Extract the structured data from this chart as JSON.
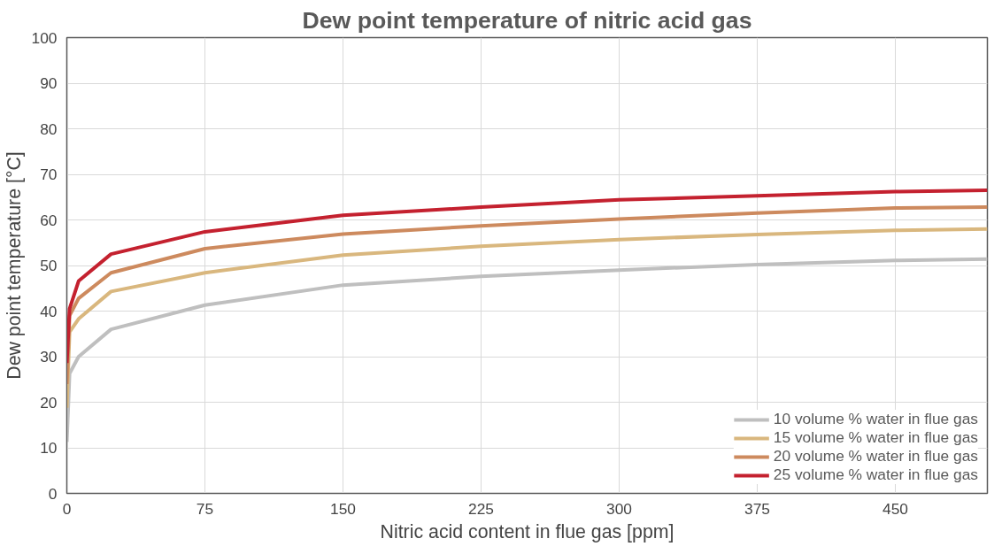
{
  "chart_data": {
    "type": "line",
    "title": "Dew point temperature of nitric acid gas",
    "xlabel": "Nitric acid content in flue gas [ppm]",
    "ylabel": "Dew point temperature [°C]",
    "x": [
      0,
      1.5,
      6.4,
      24,
      75,
      150,
      225,
      300,
      375,
      450,
      500
    ],
    "series": [
      {
        "name": "10 volume % water in flue gas",
        "color": "#bfbfbf",
        "values": [
          11.3,
          26.3,
          30,
          36,
          41.3,
          45.7,
          47.6,
          49.0,
          50.2,
          51.1,
          51.4
        ]
      },
      {
        "name": "15 volume % water in flue gas",
        "color": "#d9b77e",
        "values": [
          18.8,
          35.4,
          38.3,
          44.3,
          48.4,
          52.3,
          54.2,
          55.7,
          56.8,
          57.7,
          58.0
        ]
      },
      {
        "name": "20 volume % water in flue gas",
        "color": "#cd8a5e",
        "values": [
          24,
          39,
          42.8,
          48.4,
          53.7,
          56.9,
          58.7,
          60.2,
          61.5,
          62.6,
          62.8
        ]
      },
      {
        "name": "25 volume % water in flue gas",
        "color": "#c4212f",
        "values": [
          28.6,
          40.5,
          46.6,
          52.5,
          57.4,
          61.0,
          62.8,
          64.4,
          65.3,
          66.2,
          66.5
        ]
      }
    ],
    "xlim": [
      0,
      500
    ],
    "ylim": [
      0,
      100
    ],
    "xticks": [
      0,
      75,
      150,
      225,
      300,
      375,
      450
    ],
    "yticks": [
      0,
      10,
      20,
      30,
      40,
      50,
      60,
      70,
      80,
      90,
      100
    ],
    "grid": true,
    "legend": "bottom right",
    "marker": "none",
    "line_style": "solid"
  }
}
